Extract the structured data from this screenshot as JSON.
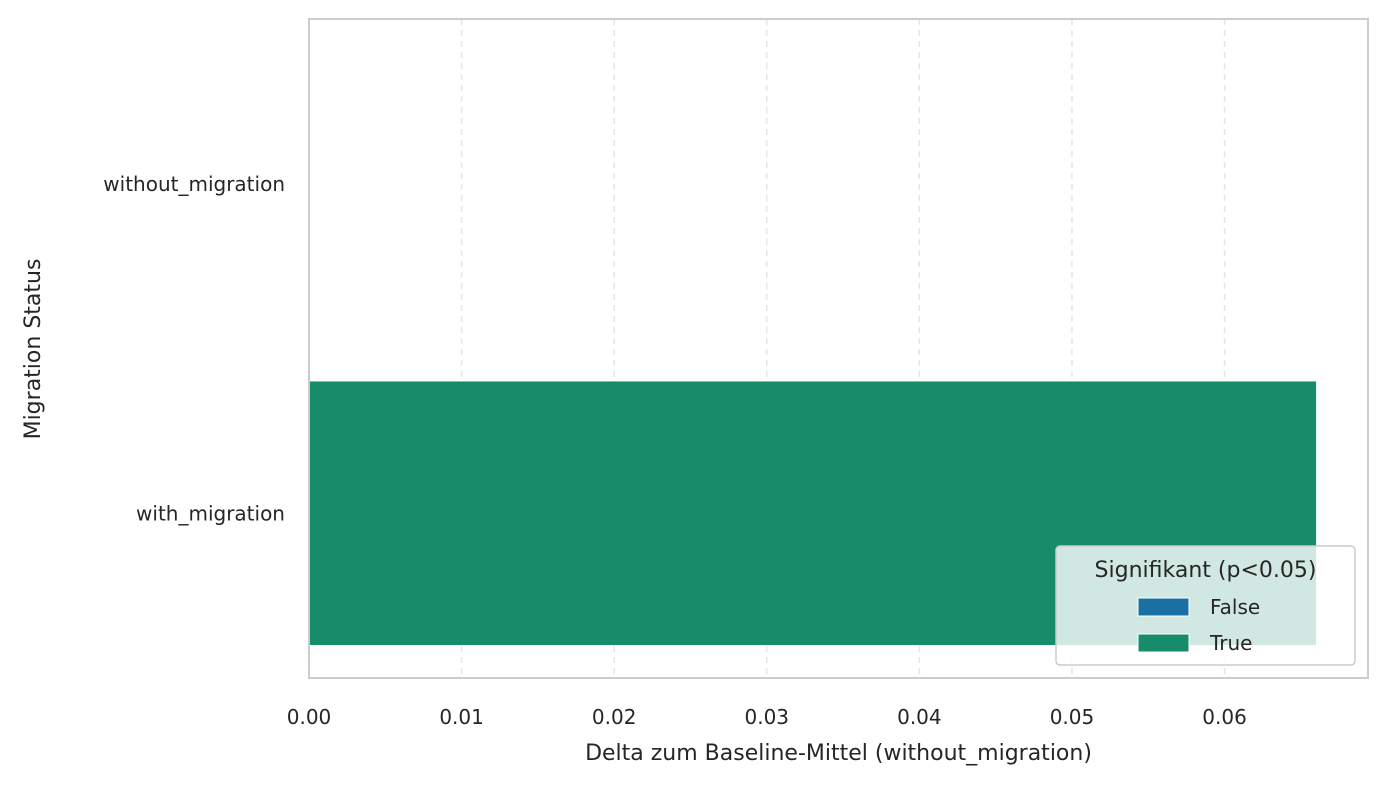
{
  "chart_data": {
    "type": "bar",
    "orientation": "horizontal",
    "categories": [
      "without_migration",
      "with_migration"
    ],
    "values": [
      0.0,
      0.066
    ],
    "significant": [
      false,
      true
    ],
    "xlabel": "Delta zum Baseline-Mittel (without_migration)",
    "ylabel": "Migration Status",
    "xlim": [
      0.0,
      0.0694
    ],
    "xticks": [
      0.0,
      0.01,
      0.02,
      0.03,
      0.04,
      0.05,
      0.06
    ],
    "xtick_labels": [
      "0.00",
      "0.01",
      "0.02",
      "0.03",
      "0.04",
      "0.05",
      "0.06"
    ],
    "grid": "x-dashed",
    "legend": {
      "title": "Signifikant (p<0.05)",
      "placement": "lower-right",
      "entries": [
        {
          "label": "False",
          "color": "#1a6fa3"
        },
        {
          "label": "True",
          "color": "#178c6a"
        }
      ]
    },
    "colors": {
      "False": "#1a6fa3",
      "True": "#178c6a"
    }
  }
}
